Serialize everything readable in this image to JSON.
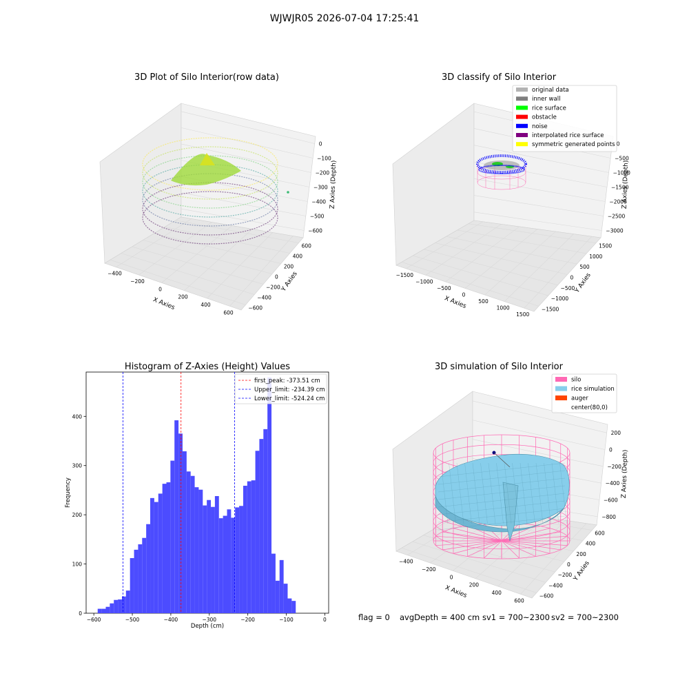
{
  "figure": {
    "suptitle": "WJWJR05 2026-07-04 17:25:41",
    "footer": {
      "flag": "flag = 0",
      "avg_depth": "avgDepth = 400 cm",
      "sv1": "sv1 = 700~2300",
      "sv2": "sv2 = 700~2300"
    }
  },
  "colors": {
    "hist_bar": "#4c4cff",
    "first_peak": "#ff0000",
    "limits": "#0000ff",
    "silo": "#ff69b4",
    "rice_sim": "#87ceeb",
    "auger": "#ff4500",
    "legend_original": "#b3b3b3",
    "legend_inner_wall": "#808080",
    "legend_rice_surface": "#00ff00",
    "legend_obstacle": "#ff0000",
    "legend_noise": "#0000ff",
    "legend_interpolated": "#800080",
    "legend_symmetric": "#ffff00"
  },
  "panels": {
    "raw": {
      "title": "3D Plot of Silo Interior(row data)",
      "xlabel": "X Axies",
      "ylabel": "Y Axies",
      "zlabel": "Z Axies (Depth)",
      "xticks": [
        "−400",
        "−200",
        "0",
        "200",
        "400",
        "600"
      ],
      "yticks": [
        "−600",
        "−400",
        "−200",
        "0",
        "200",
        "400",
        "600"
      ],
      "zticks": [
        "0",
        "−100",
        "−200",
        "−300",
        "−400",
        "−500",
        "−600"
      ]
    },
    "classify": {
      "title": "3D classify of Silo Interior",
      "xlabel": "X Axies",
      "ylabel": "Y Axies",
      "zlabel": "Z Axies (Depth)",
      "xticks": [
        "−1500",
        "−1000",
        "−500",
        "0",
        "500",
        "1000",
        "1500"
      ],
      "yticks": [
        "−1500",
        "−1000",
        "−500",
        "0",
        "500",
        "1000",
        "1500"
      ],
      "zticks": [
        "0",
        "−500",
        "−1000",
        "−1500",
        "−2000",
        "−2500",
        "−3000"
      ],
      "legend": [
        {
          "label": "original data",
          "color": "#b3b3b3"
        },
        {
          "label": "inner wall",
          "color": "#808080"
        },
        {
          "label": "rice surface",
          "color": "#00ff00"
        },
        {
          "label": "obstacle",
          "color": "#ff0000"
        },
        {
          "label": "noise",
          "color": "#0000ff"
        },
        {
          "label": "interpolated rice surface",
          "color": "#800080"
        },
        {
          "label": "symmetric generated points",
          "color": "#ffff00"
        }
      ]
    },
    "simulation": {
      "title": "3D simulation of Silo Interior",
      "xlabel": "X Axies",
      "ylabel": "Y Axies",
      "zlabel": "Z Axies (Depth)",
      "xticks": [
        "−400",
        "−200",
        "0",
        "200",
        "400",
        "600"
      ],
      "yticks": [
        "−600",
        "−400",
        "−200",
        "0",
        "200",
        "400",
        "600"
      ],
      "zticks": [
        "200",
        "0",
        "−200",
        "−400",
        "−600",
        "−800"
      ],
      "legend": [
        {
          "label": "silo",
          "color": "#ff69b4"
        },
        {
          "label": "rice simulation",
          "color": "#87ceeb"
        },
        {
          "label": "auger",
          "color": "#ff4500"
        },
        {
          "label": "center(80,0)",
          "color": ""
        }
      ]
    }
  },
  "chart_data": [
    {
      "type": "bar",
      "title": "Histogram of Z-Axies (Height) Values",
      "xlabel": "Depth (cm)",
      "ylabel": "Frequency",
      "xlim": [
        -620,
        10
      ],
      "ylim": [
        0,
        490
      ],
      "xticks": [
        -600,
        -500,
        -400,
        -300,
        -200,
        -100,
        0
      ],
      "xtick_labels": [
        "−600",
        "−500",
        "−400",
        "−300",
        "−200",
        "−100",
        "0"
      ],
      "yticks": [
        0,
        100,
        200,
        300,
        400
      ],
      "yticks_labels": [
        "0",
        "100",
        "200",
        "300",
        "400"
      ],
      "bin_start": -590,
      "bin_width": 10.5,
      "values": [
        9,
        9,
        13,
        20,
        27,
        28,
        34,
        46,
        112,
        129,
        140,
        153,
        181,
        234,
        226,
        243,
        263,
        266,
        310,
        392,
        365,
        329,
        288,
        279,
        256,
        251,
        219,
        230,
        216,
        238,
        193,
        198,
        211,
        194,
        215,
        218,
        259,
        268,
        270,
        330,
        354,
        374,
        479,
        121,
        66,
        108,
        60,
        30,
        25
      ],
      "vlines": [
        {
          "x": -373.51,
          "label": "first_peak: -373.51 cm",
          "color": "#ff0000"
        },
        {
          "x": -234.39,
          "label": "Upper_limit: -234.39 cm",
          "color": "#0000ff"
        },
        {
          "x": -524.24,
          "label": "Lower_limit: -524.24 cm",
          "color": "#0000ff"
        }
      ],
      "grid": false,
      "legend_position": "upper right"
    }
  ]
}
